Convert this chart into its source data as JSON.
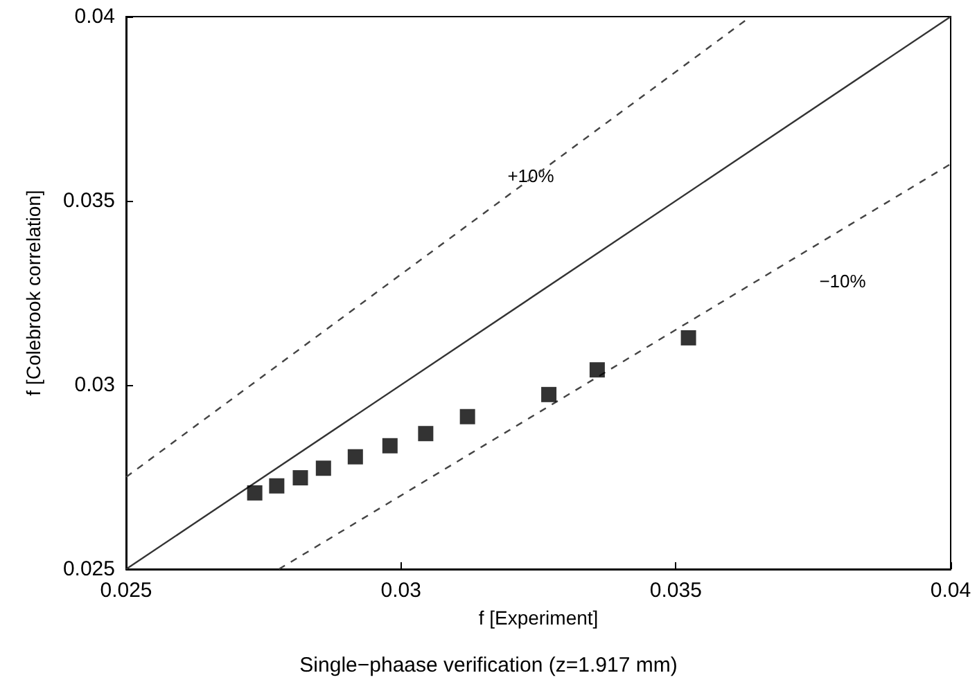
{
  "chart_data": {
    "type": "scatter",
    "title": "Single−phaase verification (z=1.917 mm)",
    "xlabel": "f [Experiment]",
    "ylabel": "f [Colebrook correlation]",
    "xlim": [
      0.025,
      0.04
    ],
    "xticks": [
      0.025,
      0.03,
      0.035,
      0.04
    ],
    "ylim": [
      0.025,
      0.04
    ],
    "yticks": [
      0.025,
      0.03,
      0.035,
      0.04
    ],
    "grid": false,
    "marker": "square",
    "series": [
      {
        "color": "#000000",
        "x": [
          0.02734,
          0.02774,
          0.02817,
          0.02859,
          0.02917,
          0.0298,
          0.03045,
          0.03121,
          0.03269,
          0.03357,
          0.03523
        ],
        "values": [
          0.02707,
          0.02726,
          0.02748,
          0.02774,
          0.02805,
          0.02835,
          0.02868,
          0.02914,
          0.02974,
          0.03041,
          0.03128
        ]
      },
      {
        "type": "line",
        "color": "#333333",
        "line_style": "solid",
        "marker": "none",
        "x": [
          0.025,
          0.04
        ],
        "values": [
          0.025,
          0.04
        ]
      },
      {
        "type": "line",
        "color": "#444444",
        "line_style": "dashed",
        "marker": "none",
        "x": [
          0.025,
          0.03636
        ],
        "values": [
          0.0275,
          0.04
        ]
      },
      {
        "type": "line",
        "color": "#444444",
        "line_style": "dashed",
        "marker": "none",
        "x": [
          0.02778,
          0.04
        ],
        "values": [
          0.025,
          0.036
        ]
      }
    ],
    "annotations": [
      "+10%",
      "−10%"
    ]
  }
}
